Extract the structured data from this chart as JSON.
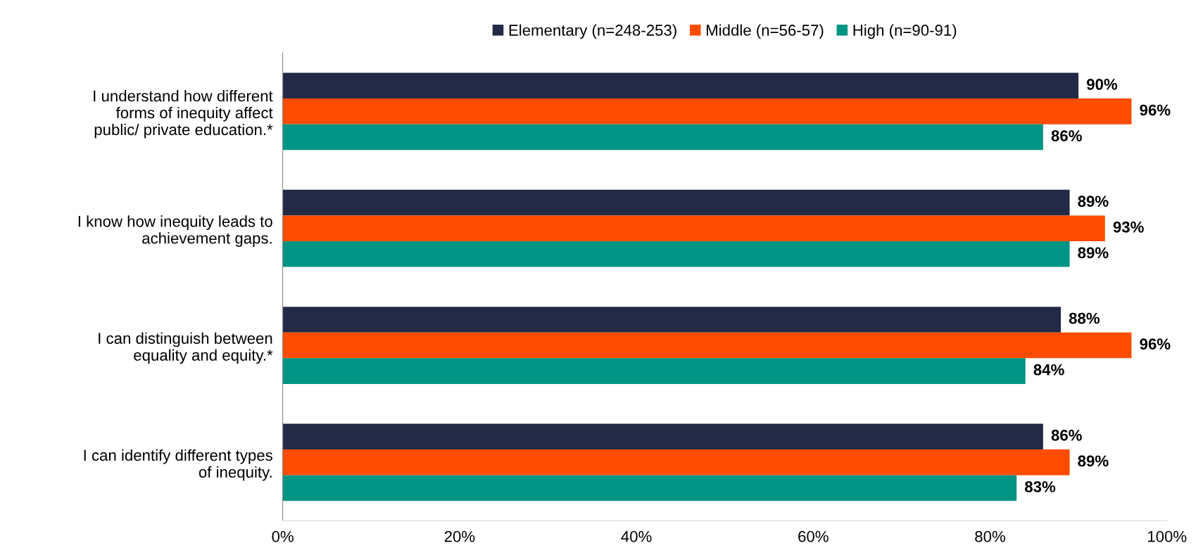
{
  "chart_data": {
    "type": "bar",
    "orientation": "horizontal",
    "categories": [
      "I understand how different\nforms of inequity affect\npublic/ private education.*",
      "I know how inequity leads to\nachievement gaps.",
      "I can distinguish between\nequality and equity.*",
      "I can identify different types\nof inequity."
    ],
    "series": [
      {
        "name": "Elementary (n=248-253)",
        "color": "#222a45",
        "values": [
          90,
          89,
          88,
          86
        ],
        "value_labels": [
          "90%",
          "89%",
          "88%",
          "86%"
        ]
      },
      {
        "name": "Middle (n=56-57)",
        "color": "#ff4c00",
        "values": [
          96,
          93,
          96,
          89
        ],
        "value_labels": [
          "96%",
          "93%",
          "96%",
          "89%"
        ]
      },
      {
        "name": "High (n=90-91)",
        "color": "#009484",
        "values": [
          86,
          89,
          84,
          83
        ],
        "value_labels": [
          "86%",
          "89%",
          "84%",
          "83%"
        ]
      }
    ],
    "xlim": [
      0,
      100
    ],
    "xticks": [
      {
        "value": 0,
        "label": "0%"
      },
      {
        "value": 20,
        "label": "20%"
      },
      {
        "value": 40,
        "label": "40%"
      },
      {
        "value": 60,
        "label": "60%"
      },
      {
        "value": 80,
        "label": "80%"
      },
      {
        "value": 100,
        "label": "100%"
      }
    ],
    "legend": "top",
    "grid": false
  }
}
